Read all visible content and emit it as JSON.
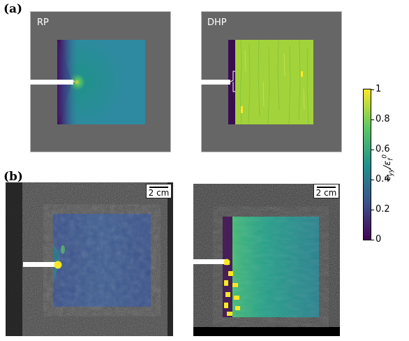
{
  "figure": {
    "panel_a_label": "(a)",
    "panel_b_label": "(b)",
    "sim_left_title": "RP",
    "sim_right_title": "DHP",
    "scale_label_left": "2 cm",
    "scale_label_right": "2 cm"
  },
  "colorbar": {
    "ticks": [
      "0",
      "0.2",
      "0.4",
      "0.6",
      "0.8",
      "1"
    ],
    "tick_values": [
      0,
      0.2,
      0.4,
      0.6,
      0.8,
      1
    ],
    "label": "εyy/εf0",
    "colormap": "viridis",
    "colors": [
      "#440154",
      "#3b528b",
      "#21918c",
      "#5ec962",
      "#fde725"
    ]
  },
  "colors": {
    "panel_gray": "#666666",
    "panel_border": "#bbbbbb",
    "rp_field": "#2e8aa0",
    "dhp_field": "#a3d33a",
    "dhp_strip": "#3a0d4f",
    "notch": "#ffffff",
    "photo_bg": "#4a4a4a"
  }
}
